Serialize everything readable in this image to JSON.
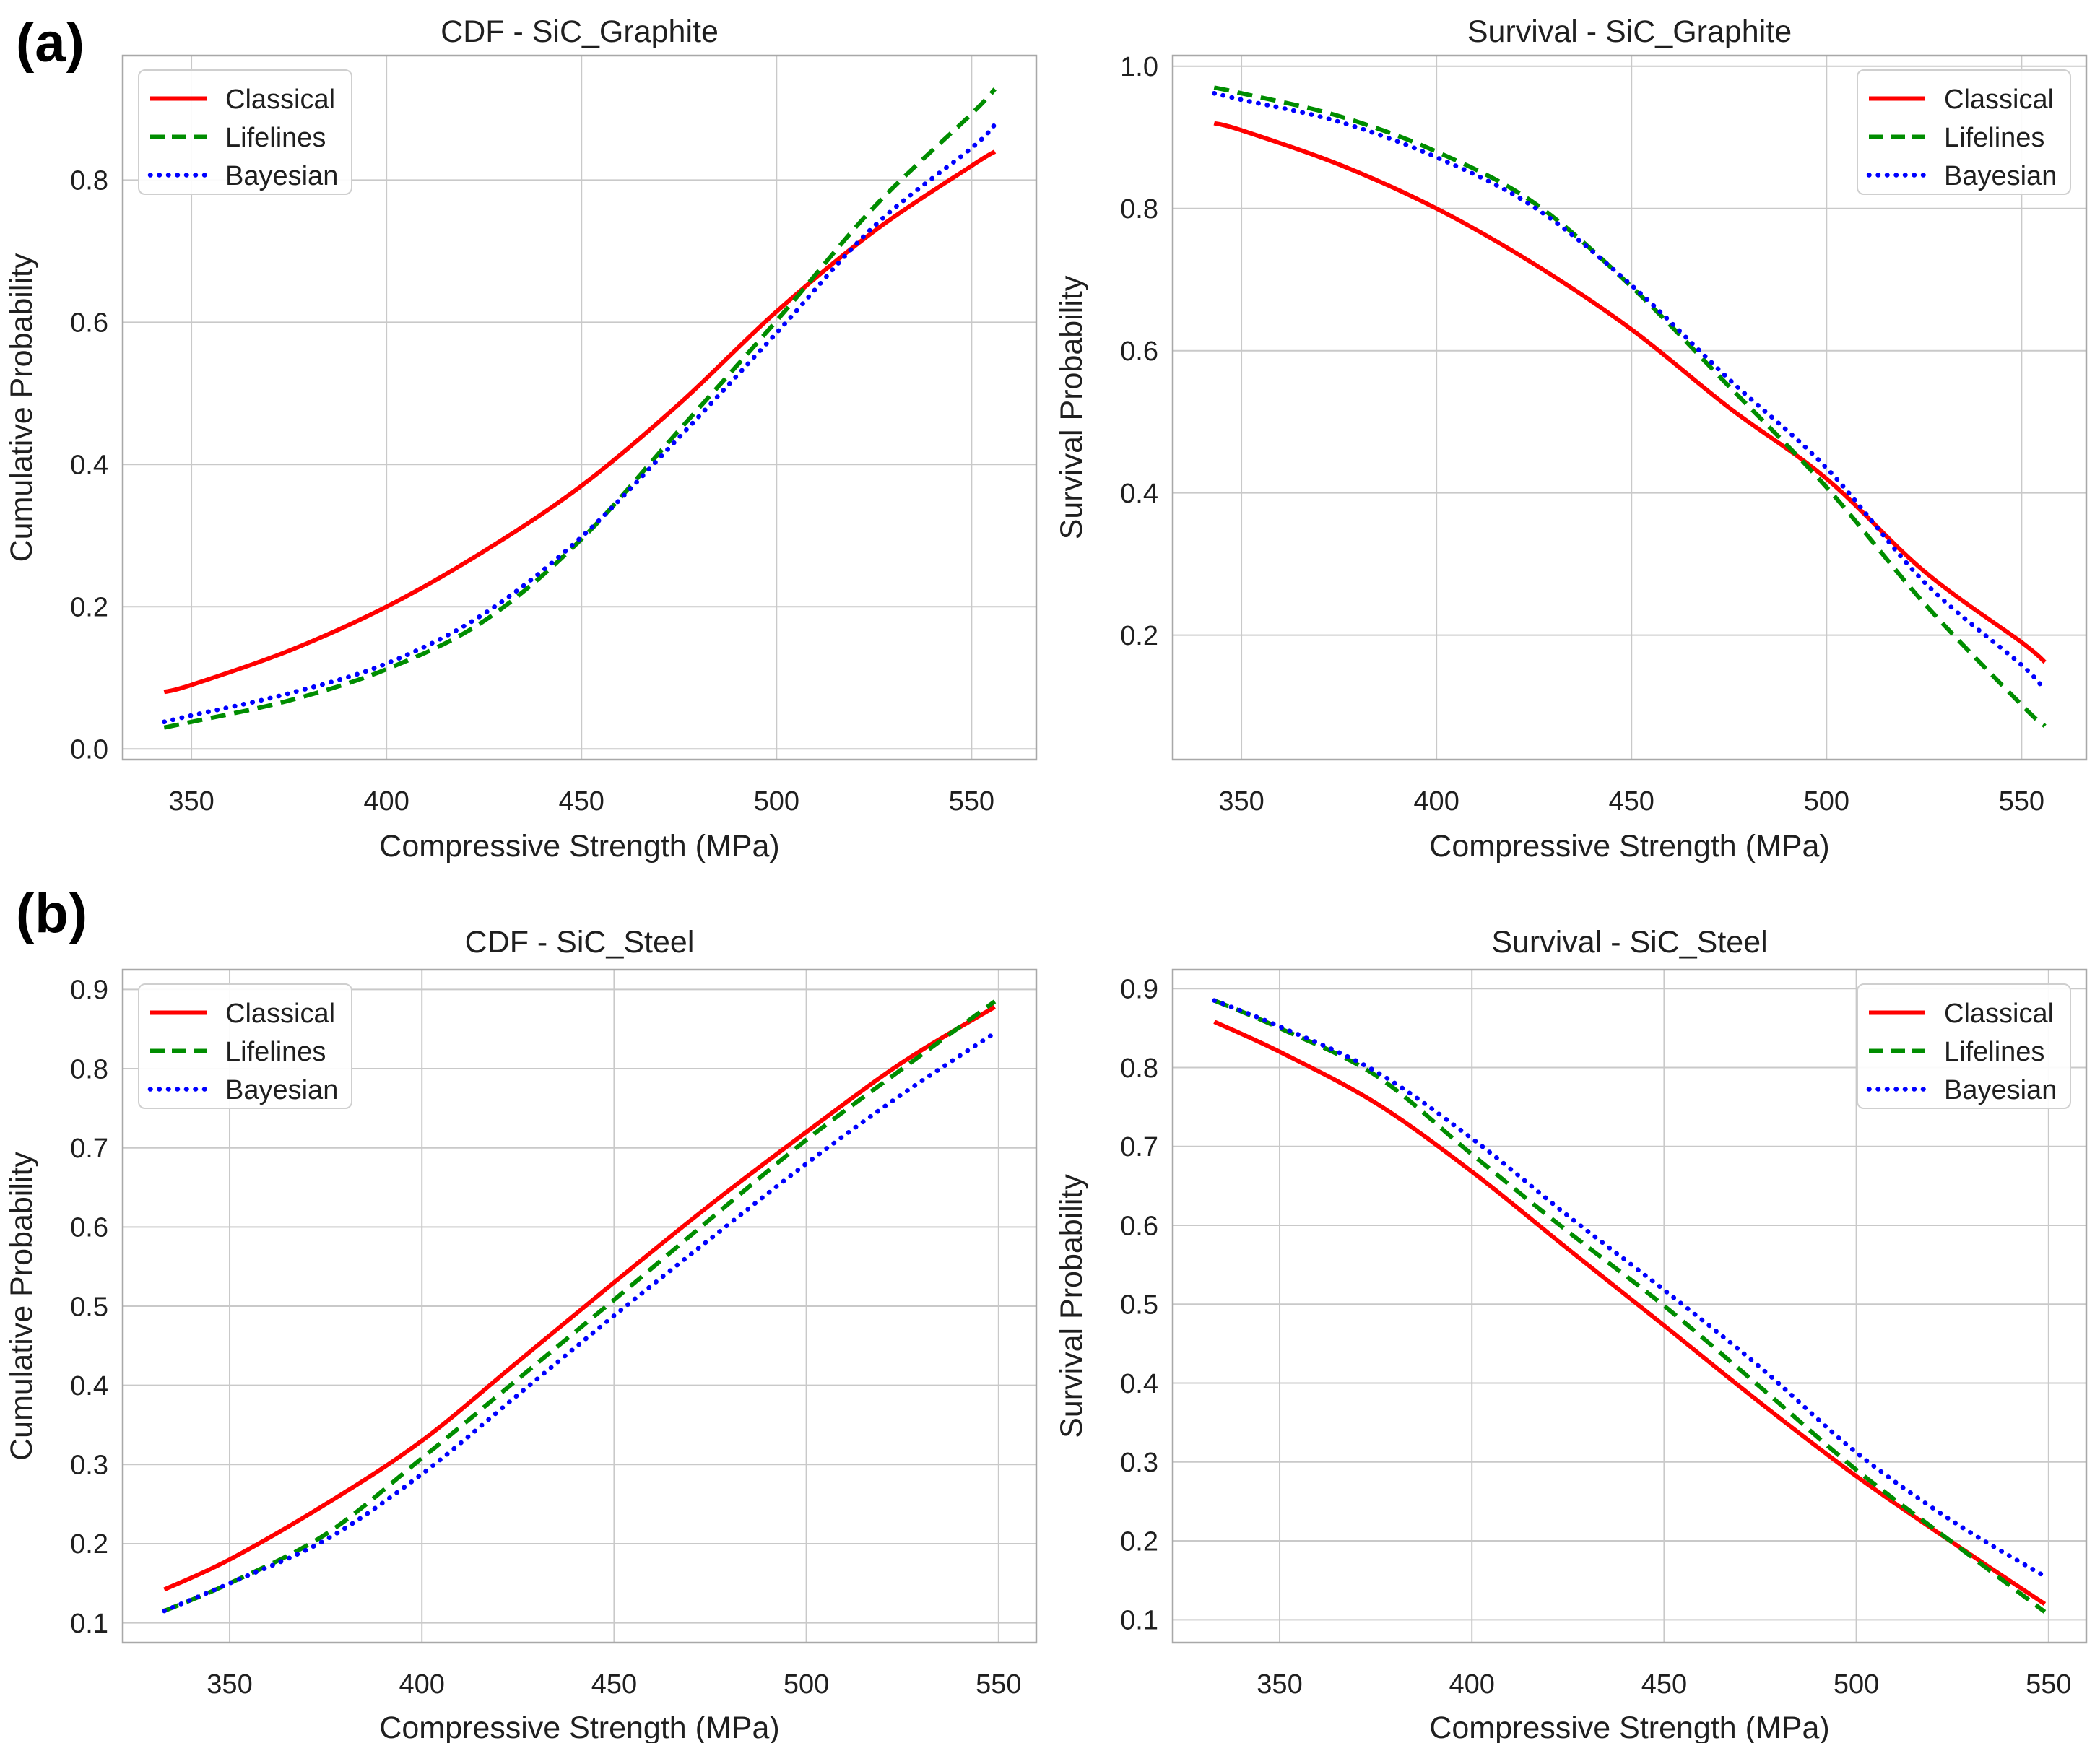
{
  "figure": {
    "panel_labels": [
      {
        "text": "(a)"
      },
      {
        "text": "(b)"
      }
    ],
    "style": {
      "background": "#ffffff",
      "text_color": "#1f1f1f",
      "grid_color": "#c9c9c9",
      "spine_color": "#a8a8a8",
      "legend_border_color": "#cfcfcf",
      "legend_background": "#ffffff",
      "classical_color": "#ff0000",
      "lifelines_color": "#008d00",
      "bayesian_color": "#0000ff"
    }
  },
  "chart_data": [
    {
      "id": "cdf-sic-graphite",
      "type": "line",
      "row": 0,
      "col": 0,
      "title": "CDF - SiC_Graphite",
      "xlabel": "Compressive Strength (MPa)",
      "ylabel": "Cumulative Probability",
      "xlim": [
        332.4,
        566.6
      ],
      "ylim": [
        -0.015,
        0.975
      ],
      "xticks": [
        350,
        400,
        450,
        500,
        550
      ],
      "xtick_labels": [
        "350",
        "400",
        "450",
        "500",
        "550"
      ],
      "yticks": [
        0.0,
        0.2,
        0.4,
        0.6,
        0.8
      ],
      "ytick_labels": [
        "0.0",
        "0.2",
        "0.4",
        "0.6",
        "0.8"
      ],
      "grid": true,
      "legend_position": "top-left",
      "x": [
        343,
        350,
        375,
        400,
        425,
        450,
        475,
        500,
        525,
        550,
        556
      ],
      "series": [
        {
          "name": "Classical",
          "style": "solid",
          "color": "#ff0000",
          "y": [
            0.08,
            0.09,
            0.138,
            0.2,
            0.278,
            0.37,
            0.485,
            0.615,
            0.728,
            0.82,
            0.84
          ]
        },
        {
          "name": "Lifelines",
          "style": "dashed",
          "color": "#008d00",
          "y": [
            0.03,
            0.038,
            0.068,
            0.112,
            0.18,
            0.295,
            0.448,
            0.602,
            0.762,
            0.893,
            0.928
          ]
        },
        {
          "name": "Bayesian",
          "style": "dotted",
          "color": "#0000ff",
          "y": [
            0.038,
            0.047,
            0.078,
            0.12,
            0.19,
            0.298,
            0.438,
            0.585,
            0.735,
            0.845,
            0.878
          ]
        }
      ]
    },
    {
      "id": "survival-sic-graphite",
      "type": "line",
      "row": 0,
      "col": 1,
      "title": "Survival - SiC_Graphite",
      "xlabel": "Compressive Strength (MPa)",
      "ylabel": "Survival Probability",
      "xlim": [
        332.4,
        566.6
      ],
      "ylim": [
        0.025,
        1.015
      ],
      "xticks": [
        350,
        400,
        450,
        500,
        550
      ],
      "xtick_labels": [
        "350",
        "400",
        "450",
        "500",
        "550"
      ],
      "yticks": [
        0.2,
        0.4,
        0.6,
        0.8,
        1.0
      ],
      "ytick_labels": [
        "0.2",
        "0.4",
        "0.6",
        "0.8",
        "1.0"
      ],
      "grid": true,
      "legend_position": "top-right",
      "x": [
        343,
        350,
        375,
        400,
        425,
        450,
        475,
        500,
        525,
        550,
        556
      ],
      "series": [
        {
          "name": "Classical",
          "style": "solid",
          "color": "#ff0000",
          "y": [
            0.92,
            0.91,
            0.862,
            0.8,
            0.722,
            0.63,
            0.52,
            0.42,
            0.29,
            0.19,
            0.162
          ]
        },
        {
          "name": "Lifelines",
          "style": "dashed",
          "color": "#008d00",
          "y": [
            0.97,
            0.962,
            0.93,
            0.88,
            0.808,
            0.69,
            0.55,
            0.408,
            0.245,
            0.102,
            0.072
          ]
        },
        {
          "name": "Bayesian",
          "style": "dotted",
          "color": "#0000ff",
          "y": [
            0.962,
            0.953,
            0.922,
            0.872,
            0.802,
            0.692,
            0.56,
            0.435,
            0.275,
            0.158,
            0.122
          ]
        }
      ]
    },
    {
      "id": "cdf-sic-steel",
      "type": "line",
      "row": 1,
      "col": 0,
      "title": "CDF - SiC_Steel",
      "xlabel": "Compressive Strength (MPa)",
      "ylabel": "Cumulative Probability",
      "xlim": [
        322.2,
        559.8
      ],
      "ylim": [
        0.075,
        0.925
      ],
      "xticks": [
        350,
        400,
        450,
        500,
        550
      ],
      "xtick_labels": [
        "350",
        "400",
        "450",
        "500",
        "550"
      ],
      "yticks": [
        0.1,
        0.2,
        0.3,
        0.4,
        0.5,
        0.6,
        0.7,
        0.8,
        0.9
      ],
      "ytick_labels": [
        "0.1",
        "0.2",
        "0.3",
        "0.4",
        "0.5",
        "0.6",
        "0.7",
        "0.8",
        "0.9"
      ],
      "grid": true,
      "legend_position": "top-left",
      "x": [
        333,
        350,
        375,
        400,
        425,
        450,
        475,
        500,
        525,
        549
      ],
      "series": [
        {
          "name": "Classical",
          "style": "solid",
          "color": "#ff0000",
          "y": [
            0.142,
            0.18,
            0.25,
            0.33,
            0.43,
            0.53,
            0.628,
            0.72,
            0.808,
            0.878
          ]
        },
        {
          "name": "Lifelines",
          "style": "dashed",
          "color": "#008d00",
          "y": [
            0.115,
            0.15,
            0.212,
            0.308,
            0.408,
            0.508,
            0.61,
            0.71,
            0.8,
            0.885
          ]
        },
        {
          "name": "Bayesian",
          "style": "dotted",
          "color": "#0000ff",
          "y": [
            0.115,
            0.15,
            0.205,
            0.288,
            0.388,
            0.488,
            0.585,
            0.68,
            0.768,
            0.845
          ]
        }
      ]
    },
    {
      "id": "survival-sic-steel",
      "type": "line",
      "row": 1,
      "col": 1,
      "title": "Survival - SiC_Steel",
      "xlabel": "Compressive Strength (MPa)",
      "ylabel": "Survival Probability",
      "xlim": [
        322.2,
        559.8
      ],
      "ylim": [
        0.071,
        0.924
      ],
      "xticks": [
        350,
        400,
        450,
        500,
        550
      ],
      "xtick_labels": [
        "350",
        "400",
        "450",
        "500",
        "550"
      ],
      "yticks": [
        0.1,
        0.2,
        0.3,
        0.4,
        0.5,
        0.6,
        0.7,
        0.8,
        0.9
      ],
      "ytick_labels": [
        "0.1",
        "0.2",
        "0.3",
        "0.4",
        "0.5",
        "0.6",
        "0.7",
        "0.8",
        "0.9"
      ],
      "grid": true,
      "legend_position": "top-right",
      "x": [
        333,
        350,
        375,
        400,
        425,
        450,
        475,
        500,
        525,
        549
      ],
      "series": [
        {
          "name": "Classical",
          "style": "solid",
          "color": "#ff0000",
          "y": [
            0.858,
            0.82,
            0.755,
            0.668,
            0.57,
            0.473,
            0.375,
            0.282,
            0.198,
            0.12
          ]
        },
        {
          "name": "Lifelines",
          "style": "dashed",
          "color": "#008d00",
          "y": [
            0.885,
            0.85,
            0.79,
            0.69,
            0.592,
            0.498,
            0.395,
            0.29,
            0.198,
            0.11
          ]
        },
        {
          "name": "Bayesian",
          "style": "dotted",
          "color": "#0000ff",
          "y": [
            0.885,
            0.852,
            0.795,
            0.71,
            0.612,
            0.518,
            0.42,
            0.312,
            0.225,
            0.155
          ]
        }
      ]
    }
  ]
}
